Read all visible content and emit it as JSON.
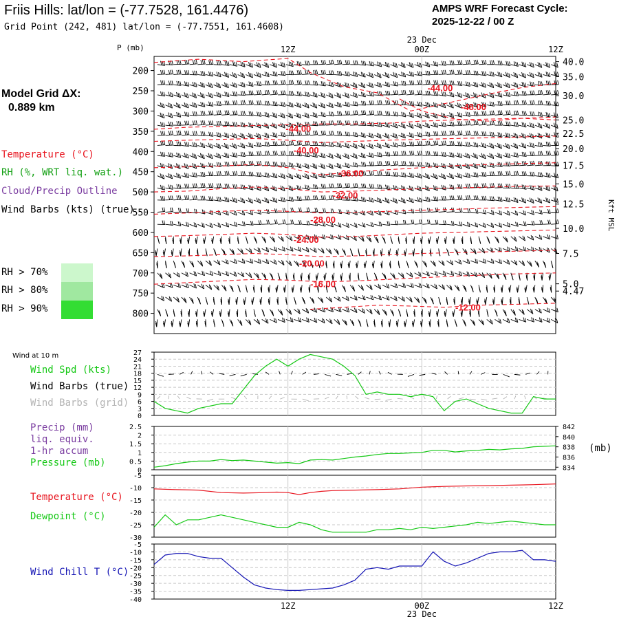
{
  "header": {
    "title": "Friis Hills:  lat/lon = (-77.7528, 161.4476)",
    "subtitle": "Grid Point (242, 481) lat/lon = (-77.7551, 161.4608)",
    "cycle_line1": "AMPS WRF Forecast Cycle:",
    "cycle_line2": "2025-12-22 / 00  Z",
    "date_top": "23 Dec",
    "date_bottom": "23 Dec"
  },
  "left_panel": {
    "grid_label_1": "Model Grid ΔX:",
    "grid_label_2": "0.889 km",
    "legend": [
      {
        "text": "Temperature (°C)",
        "color": "#e8141e"
      },
      {
        "text": "RH (%, WRT liq. wat.)",
        "color": "#14a014"
      },
      {
        "text": "Cloud/Precip Outline",
        "color": "#7a3ca0"
      },
      {
        "text": "Wind Barbs (kts) (true)",
        "color": "#000000"
      }
    ],
    "rh_legend": [
      {
        "text": "RH > 70%",
        "color": "#ccf7cc"
      },
      {
        "text": "RH > 80%",
        "color": "#a0e8a0"
      },
      {
        "text": "RH > 90%",
        "color": "#33dd33"
      }
    ]
  },
  "colors": {
    "temperature": "#e8141e",
    "green": "#14c814",
    "purple": "#7a3ca0",
    "blue": "#1414b4",
    "grid_barb": "#b4b4b4",
    "gridline": "#c8c8c8"
  },
  "time_axis": {
    "ticks": [
      "12Z",
      "00Z",
      "12Z"
    ],
    "hours": [
      12,
      24,
      36
    ],
    "range": [
      0,
      36
    ]
  },
  "chart_data": [
    {
      "type": "line",
      "id": "cross-section",
      "ylabel": "P (mb)",
      "ylabel_right": "Kft MSL",
      "pressure_ticks": [
        200,
        250,
        300,
        350,
        400,
        450,
        500,
        550,
        600,
        650,
        700,
        750,
        800
      ],
      "ylim": [
        165,
        850
      ],
      "height_ticks": [
        {
          "label": "40.0",
          "p": 178
        },
        {
          "label": "35.0",
          "p": 215
        },
        {
          "label": "30.0",
          "p": 262
        },
        {
          "label": "25.0",
          "p": 322
        },
        {
          "label": "22.5",
          "p": 355
        },
        {
          "label": "20.0",
          "p": 393
        },
        {
          "label": "17.5",
          "p": 434
        },
        {
          "label": "15.0",
          "p": 480
        },
        {
          "label": "12.5",
          "p": 530
        },
        {
          "label": "10.0",
          "p": 590
        },
        {
          "label": "7.5",
          "p": 652
        },
        {
          "label": "5.0",
          "p": 727
        },
        {
          "label": "4.47",
          "p": 745
        }
      ],
      "temperature_contours": [
        {
          "label": "-44.00",
          "x": [
            0,
            4,
            8,
            12,
            14,
            17,
            20,
            23,
            26,
            30,
            33,
            36
          ],
          "p": [
            180,
            172,
            178,
            170,
            205,
            240,
            255,
            300,
            282,
            258,
            242,
            232
          ],
          "label_at": [
            24.5,
            251
          ]
        },
        {
          "label": "-48.00",
          "x": [
            22,
            24,
            27,
            30,
            33,
            36
          ],
          "p": [
            270,
            300,
            320,
            325,
            318,
            322
          ],
          "label_at": [
            27.5,
            298
          ]
        },
        {
          "label": "-44.00",
          "x": [
            0,
            3,
            6,
            9,
            12,
            15,
            18,
            21,
            24,
            27,
            30,
            33,
            36
          ],
          "p": [
            345,
            340,
            338,
            336,
            334,
            332,
            332,
            330,
            325,
            322,
            320,
            318,
            315
          ],
          "label_at": [
            11.8,
            351
          ]
        },
        {
          "label": "-40.00",
          "x": [
            0,
            3,
            6,
            9,
            12,
            15,
            18,
            21,
            24,
            27,
            30,
            33,
            36
          ],
          "p": [
            375,
            372,
            370,
            368,
            372,
            378,
            375,
            372,
            370,
            368,
            366,
            364,
            362
          ],
          "label_at": [
            12.5,
            405
          ]
        },
        {
          "label": "-36.00",
          "x": [
            0,
            3,
            6,
            9,
            12,
            15,
            18,
            21,
            24,
            27,
            30,
            33,
            36
          ],
          "p": [
            440,
            438,
            436,
            432,
            440,
            458,
            450,
            445,
            440,
            435,
            432,
            430,
            428
          ],
          "label_at": [
            16.5,
            462
          ]
        },
        {
          "label": "-32.00",
          "x": [
            0,
            3,
            6,
            9,
            12,
            15,
            18,
            21,
            24,
            27,
            30,
            33,
            36
          ],
          "p": [
            500,
            498,
            492,
            488,
            492,
            500,
            498,
            495,
            492,
            490,
            488,
            486,
            485
          ],
          "label_at": [
            16.0,
            516
          ]
        },
        {
          "label": "-28.00",
          "x": [
            0,
            3,
            6,
            9,
            12,
            15,
            18,
            21,
            24,
            27,
            30,
            33,
            36
          ],
          "p": [
            555,
            552,
            548,
            545,
            548,
            552,
            550,
            548,
            545,
            543,
            540,
            538,
            536
          ],
          "label_at": [
            14.0,
            576
          ]
        },
        {
          "label": "-24.00",
          "x": [
            0,
            3,
            6,
            9,
            12,
            15,
            18,
            21,
            24,
            27,
            30,
            33,
            36
          ],
          "p": [
            610,
            608,
            605,
            602,
            605,
            612,
            610,
            606,
            602,
            600,
            598,
            596,
            594
          ],
          "label_at": [
            12.5,
            626
          ]
        },
        {
          "label": "-20.00",
          "x": [
            0,
            3,
            6,
            9,
            12,
            15,
            18,
            21,
            24,
            27,
            30,
            33,
            36
          ],
          "p": [
            660,
            658,
            655,
            652,
            655,
            660,
            658,
            655,
            652,
            650,
            648,
            646,
            644
          ],
          "label_at": [
            13.0,
            684
          ]
        },
        {
          "label": "-16.00",
          "x": [
            0,
            3,
            6,
            9,
            12,
            15,
            18,
            21,
            24,
            27,
            30,
            33,
            36
          ],
          "p": [
            728,
            724,
            720,
            716,
            718,
            722,
            720,
            716,
            712,
            708,
            705,
            702,
            700
          ],
          "label_at": [
            14.0,
            735
          ]
        },
        {
          "label": "-12.00",
          "x": [
            14,
            17,
            20,
            23,
            26,
            29,
            32,
            36
          ],
          "p": [
            790,
            785,
            780,
            782,
            785,
            780,
            778,
            775
          ],
          "label_at": [
            27.0,
            793
          ]
        }
      ]
    },
    {
      "type": "line",
      "id": "wind-10m",
      "title": "Wind at 10 m",
      "ylim": [
        0,
        27
      ],
      "yticks": [
        0,
        3,
        6,
        9,
        12,
        15,
        18,
        21,
        24,
        27
      ],
      "legend": [
        {
          "text": "Wind Spd (kts)",
          "color": "#14c814"
        },
        {
          "text": "Wind Barbs (true)",
          "color": "#000000"
        },
        {
          "text": "Wind Barbs (grid)",
          "color": "#b4b4b4"
        }
      ],
      "series": [
        {
          "name": "Wind Spd (kts)",
          "x": [
            0,
            1,
            3,
            4,
            6,
            7,
            8,
            9,
            10,
            11,
            12,
            13,
            14,
            15,
            16,
            17,
            18,
            19,
            20,
            21,
            22,
            23,
            24,
            25,
            26,
            27,
            28,
            29,
            30,
            31,
            32,
            33,
            34,
            35,
            36
          ],
          "values": [
            6,
            3,
            1,
            3,
            5,
            5,
            11,
            17,
            21,
            24,
            21,
            24,
            26,
            25,
            24,
            21,
            17,
            9,
            10,
            9,
            9,
            8,
            9,
            8,
            2,
            6,
            7,
            5,
            3,
            2,
            1,
            1,
            8,
            7,
            7
          ]
        }
      ]
    },
    {
      "type": "line",
      "id": "precip-pressure",
      "ylim": [
        0,
        2.5
      ],
      "yticks": [
        0.0,
        0.5,
        1.0,
        1.5,
        2.0,
        2.5
      ],
      "yticks_right": [
        834,
        836,
        838,
        840,
        842
      ],
      "ylim_right": [
        833.5,
        842
      ],
      "ylabel_right": "(mb)",
      "legend": [
        {
          "text": "Precip (mm)",
          "color": "#7a3ca0"
        },
        {
          "text": "liq. equiv.",
          "color": "#7a3ca0"
        },
        {
          "text": "1-hr accum",
          "color": "#7a3ca0"
        },
        {
          "text": "Pressure (mb)",
          "color": "#14c814"
        }
      ],
      "series": [
        {
          "name": "Pressure (mb)",
          "x": [
            0,
            1,
            2,
            3,
            4,
            5,
            6,
            7,
            8,
            9,
            10,
            11,
            12,
            13,
            14,
            15,
            16,
            17,
            18,
            19,
            20,
            21,
            22,
            23,
            24,
            25,
            26,
            27,
            28,
            29,
            30,
            31,
            32,
            33,
            34,
            35,
            36
          ],
          "values": [
            834.0,
            834.3,
            834.7,
            835.0,
            835.2,
            835.2,
            835.5,
            835.3,
            835.4,
            835.2,
            835.0,
            834.8,
            834.9,
            834.7,
            835.4,
            835.5,
            835.4,
            835.7,
            836.0,
            836.2,
            836.5,
            836.7,
            836.7,
            836.8,
            836.9,
            837.3,
            837.3,
            837.0,
            837.2,
            837.3,
            837.5,
            837.4,
            837.6,
            837.7,
            838.0,
            838.1,
            838.2
          ]
        }
      ]
    },
    {
      "type": "line",
      "id": "temp-dewpoint",
      "ylim": [
        -30,
        -5
      ],
      "yticks": [
        -30,
        -25,
        -20,
        -15,
        -10,
        -5
      ],
      "legend": [
        {
          "text": "Temperature (°C)",
          "color": "#e8141e"
        },
        {
          "text": "Dewpoint (°C)",
          "color": "#14c814"
        }
      ],
      "series": [
        {
          "name": "Temperature (°C)",
          "x": [
            0,
            2,
            4,
            6,
            8,
            10,
            11,
            12,
            13,
            14,
            15,
            16,
            18,
            20,
            22,
            24,
            26,
            28,
            30,
            32,
            34,
            36
          ],
          "values": [
            -10.5,
            -10.8,
            -11.0,
            -12.0,
            -12.2,
            -12.0,
            -11.8,
            -12.0,
            -12.8,
            -12.0,
            -11.5,
            -11.2,
            -11.0,
            -10.8,
            -10.5,
            -9.8,
            -9.5,
            -9.3,
            -9.2,
            -9.0,
            -8.8,
            -8.5
          ]
        },
        {
          "name": "Dewpoint (°C)",
          "x": [
            0,
            1,
            2,
            3,
            4,
            5,
            6,
            7,
            8,
            9,
            10,
            11,
            12,
            13,
            14,
            15,
            16,
            17,
            18,
            19,
            20,
            21,
            22,
            23,
            24,
            25,
            26,
            27,
            28,
            29,
            30,
            31,
            32,
            33,
            34,
            35,
            36
          ],
          "values": [
            -26,
            -21,
            -25,
            -23,
            -23,
            -22,
            -21,
            -22,
            -23,
            -24,
            -25,
            -26,
            -26,
            -24,
            -25,
            -27,
            -28,
            -28,
            -28,
            -28,
            -27,
            -27,
            -26.5,
            -27,
            -26,
            -26.5,
            -26,
            -25.5,
            -25,
            -24,
            -24.5,
            -24,
            -23.5,
            -24,
            -24.5,
            -25,
            -25
          ]
        }
      ]
    },
    {
      "type": "line",
      "id": "wind-chill",
      "ylim": [
        -40,
        -5
      ],
      "yticks": [
        -40,
        -35,
        -30,
        -25,
        -20,
        -15,
        -10,
        -5
      ],
      "legend": [
        {
          "text": "Wind Chill T (°C)",
          "color": "#1414b4"
        }
      ],
      "series": [
        {
          "name": "Wind Chill T (°C)",
          "x": [
            0,
            1,
            2,
            3,
            4,
            5,
            6,
            7,
            8,
            9,
            10,
            11,
            12,
            13,
            14,
            15,
            16,
            17,
            18,
            19,
            20,
            21,
            22,
            23,
            24,
            25,
            26,
            27,
            28,
            29,
            30,
            31,
            32,
            33,
            34,
            35,
            36
          ],
          "values": [
            -18,
            -12,
            -11,
            -11,
            -13,
            -14,
            -14,
            -20,
            -26,
            -31,
            -33,
            -34,
            -34.5,
            -34.5,
            -34,
            -33.5,
            -33,
            -31,
            -28,
            -21,
            -20,
            -21,
            -19,
            -19,
            -19,
            -10,
            -16,
            -19,
            -17,
            -14,
            -11,
            -10,
            -10,
            -9,
            -15,
            -15,
            -16
          ]
        }
      ]
    }
  ]
}
